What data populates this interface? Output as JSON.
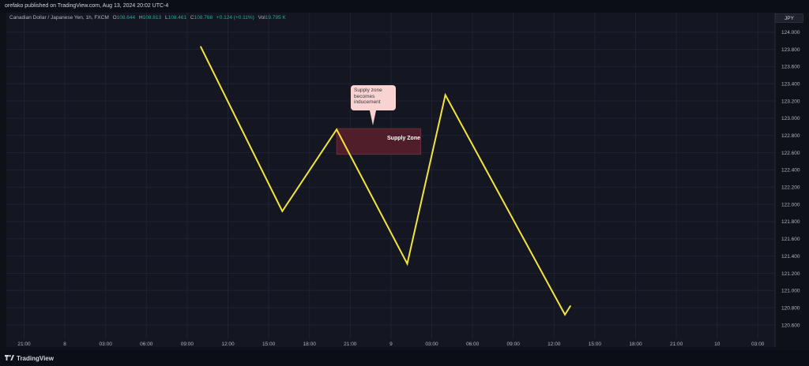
{
  "header": {
    "published_text": "orefako published on TradingView.com, Aug 13, 2024 20:02 UTC-4"
  },
  "symbol": {
    "name": "Canadian Dollar / Japanese Yen, 1h, FXCM",
    "open_label": "O",
    "open": "108.644",
    "high_label": "H",
    "high": "108.813",
    "low_label": "L",
    "low": "108.461",
    "close_label": "C",
    "close": "108.768",
    "change": "+0.124 (+0.11%)",
    "vol_label": "Vol",
    "volume": "19.795 K"
  },
  "currency_button": "JPY",
  "annotations": {
    "callout_text": "Supply zone becomes inducement",
    "zone_label": "Supply Zone"
  },
  "footer": {
    "logo_text": "TradingView"
  },
  "colors": {
    "price_line": "#f2e43a",
    "supply_zone": "#5a1f2c",
    "callout_bg": "#f9d2d2",
    "background": "#141722",
    "accent_value": "#26a69a"
  },
  "chart_data": {
    "type": "line",
    "title": "",
    "xlabel": "",
    "ylabel": "",
    "y_range": [
      120.5,
      124.1
    ],
    "y_ticks": [
      124.0,
      123.8,
      123.6,
      123.4,
      123.2,
      123.0,
      122.8,
      122.6,
      122.4,
      122.2,
      122.0,
      121.8,
      121.6,
      121.4,
      121.2,
      121.0,
      120.8,
      120.6
    ],
    "x_tick_labels": [
      "21:00",
      "8",
      "03:00",
      "06:00",
      "09:00",
      "12:00",
      "15:00",
      "18:00",
      "21:00",
      "9",
      "03:00",
      "06:00",
      "09:00",
      "12:00",
      "15:00",
      "18:00",
      "21:00",
      "10",
      "03:00"
    ],
    "grid": true,
    "series": [
      {
        "x_hours": [
          10,
          16,
          20,
          25.2,
          28,
          36.8,
          37.2
        ],
        "y": [
          123.83,
          121.92,
          122.87,
          121.31,
          123.27,
          120.72,
          120.82
        ]
      }
    ],
    "supply_zone": {
      "x_hours_start": 20,
      "x_hours_end": 26.2,
      "y_low": 122.58,
      "y_high": 122.88
    }
  }
}
